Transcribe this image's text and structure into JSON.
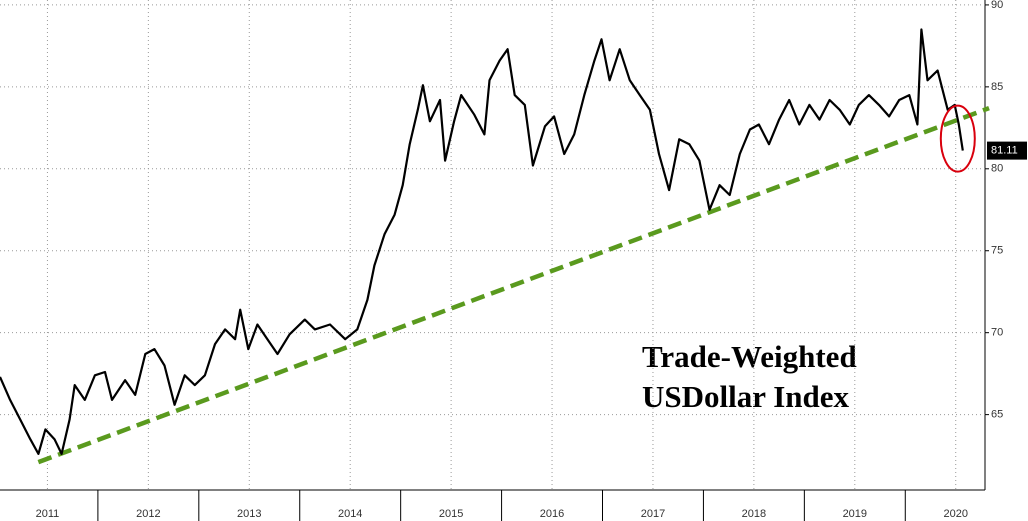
{
  "chart_data": {
    "type": "line",
    "title_lines": [
      "Trade-Weighted",
      "USDollar Index"
    ],
    "last_value_label": "81.11",
    "xlim": [
      2011.03,
      2020.79
    ],
    "xticks": [
      {
        "value": 2011.5,
        "label": "2011"
      },
      {
        "value": 2012.5,
        "label": "2012"
      },
      {
        "value": 2013.5,
        "label": "2013"
      },
      {
        "value": 2014.5,
        "label": "2014"
      },
      {
        "value": 2015.5,
        "label": "2015"
      },
      {
        "value": 2016.5,
        "label": "2016"
      },
      {
        "value": 2017.5,
        "label": "2017"
      },
      {
        "value": 2018.5,
        "label": "2018"
      },
      {
        "value": 2019.5,
        "label": "2019"
      },
      {
        "value": 2020.5,
        "label": "2020"
      }
    ],
    "ylim": [
      60.4,
      90.3
    ],
    "yticks": [
      65,
      70,
      75,
      80,
      85,
      90
    ],
    "grid": true,
    "series": [
      {
        "color": "#000000",
        "x": [
          2011.03,
          2011.13,
          2011.23,
          2011.33,
          2011.41,
          2011.48,
          2011.57,
          2011.64,
          2011.72,
          2011.77,
          2011.87,
          2011.97,
          2012.07,
          2012.14,
          2012.27,
          2012.37,
          2012.47,
          2012.56,
          2012.66,
          2012.76,
          2012.86,
          2012.96,
          2013.06,
          2013.16,
          2013.26,
          2013.36,
          2013.41,
          2013.49,
          2013.58,
          2013.68,
          2013.78,
          2013.9,
          2014.05,
          2014.15,
          2014.3,
          2014.45,
          2014.57,
          2014.67,
          2014.74,
          2014.84,
          2014.94,
          2015.02,
          2015.09,
          2015.17,
          2015.22,
          2015.29,
          2015.39,
          2015.44,
          2015.53,
          2015.6,
          2015.73,
          2015.83,
          2015.88,
          2015.98,
          2016.06,
          2016.13,
          2016.23,
          2016.31,
          2016.43,
          2016.52,
          2016.62,
          2016.72,
          2016.82,
          2016.92,
          2016.99,
          2017.07,
          2017.17,
          2017.27,
          2017.37,
          2017.47,
          2017.56,
          2017.66,
          2017.76,
          2017.86,
          2017.96,
          2018.06,
          2018.16,
          2018.26,
          2018.36,
          2018.46,
          2018.55,
          2018.65,
          2018.75,
          2018.85,
          2018.95,
          2019.05,
          2019.15,
          2019.25,
          2019.35,
          2019.45,
          2019.54,
          2019.64,
          2019.74,
          2019.84,
          2019.94,
          2020.04,
          2020.12,
          2020.16,
          2020.22,
          2020.32,
          2020.42,
          2020.49,
          2020.53,
          2020.57
        ],
        "values": [
          67.3,
          65.9,
          64.7,
          63.5,
          62.6,
          64.1,
          63.5,
          62.6,
          64.7,
          66.8,
          65.9,
          67.4,
          67.6,
          65.9,
          67.1,
          66.2,
          68.7,
          69.0,
          68.0,
          65.6,
          67.4,
          66.8,
          67.4,
          69.3,
          70.2,
          69.6,
          71.4,
          69.0,
          70.5,
          69.6,
          68.7,
          69.9,
          70.8,
          70.2,
          70.5,
          69.6,
          70.2,
          72.0,
          74.1,
          76.0,
          77.2,
          79.0,
          81.5,
          83.6,
          85.1,
          82.9,
          84.2,
          80.5,
          82.9,
          84.5,
          83.3,
          82.1,
          85.4,
          86.6,
          87.3,
          84.5,
          83.9,
          80.2,
          82.6,
          83.2,
          80.9,
          82.1,
          84.5,
          86.6,
          87.9,
          85.4,
          87.3,
          85.4,
          84.5,
          83.6,
          80.9,
          78.7,
          81.8,
          81.5,
          80.5,
          77.5,
          79.0,
          78.4,
          80.9,
          82.4,
          82.7,
          81.5,
          83.0,
          84.2,
          82.7,
          83.9,
          83.0,
          84.2,
          83.6,
          82.7,
          83.9,
          84.5,
          83.9,
          83.2,
          84.2,
          84.5,
          82.7,
          88.5,
          85.4,
          86.0,
          83.6,
          83.9,
          82.7,
          81.11
        ]
      }
    ],
    "trendline": {
      "color": "#5a9a1e",
      "x": [
        2011.41,
        2020.83
      ],
      "values": [
        62.1,
        83.7
      ]
    }
  }
}
